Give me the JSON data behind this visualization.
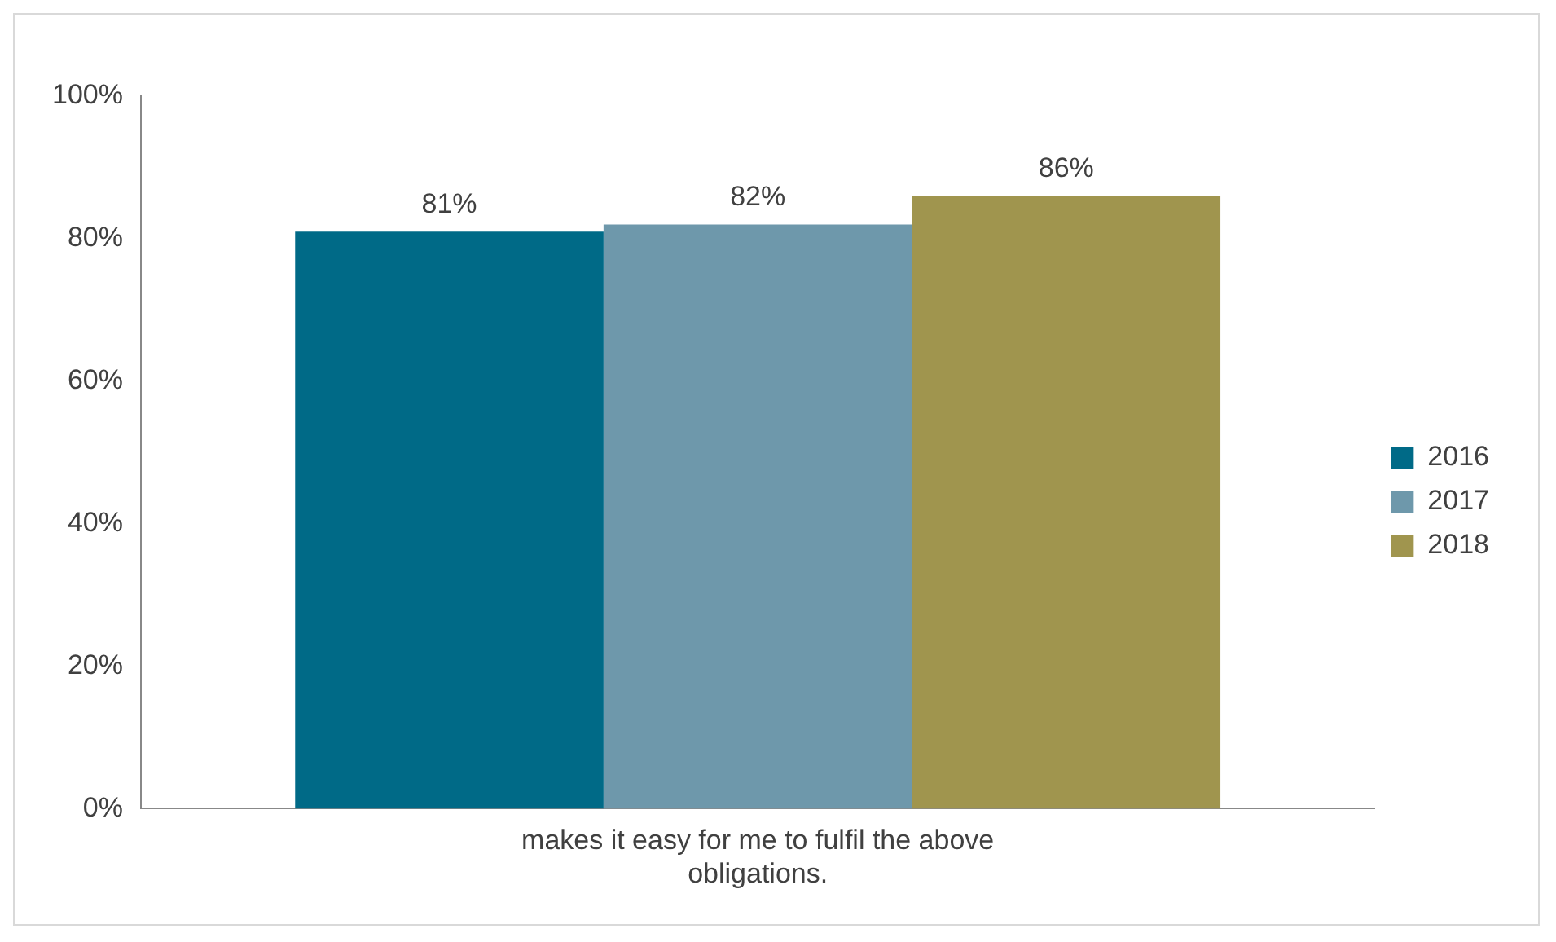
{
  "chart_data": {
    "type": "bar",
    "categories": [
      "makes it easy for me to fulfil the above obligations."
    ],
    "series": [
      {
        "name": "2016",
        "color": "#006a87",
        "values": [
          81
        ],
        "value_labels": [
          "81%"
        ]
      },
      {
        "name": "2017",
        "color": "#6e98ab",
        "values": [
          82
        ],
        "value_labels": [
          "82%"
        ]
      },
      {
        "name": "2018",
        "color": "#a0954e",
        "values": [
          86
        ],
        "value_labels": [
          "86%"
        ]
      }
    ],
    "ylim": [
      0,
      100
    ],
    "yticks": [
      {
        "value": 0,
        "label": "0%"
      },
      {
        "value": 20,
        "label": "20%"
      },
      {
        "value": 40,
        "label": "40%"
      },
      {
        "value": 60,
        "label": "60%"
      },
      {
        "value": 80,
        "label": "80%"
      },
      {
        "value": 100,
        "label": "100%"
      }
    ],
    "grid": false,
    "legend": "right"
  }
}
